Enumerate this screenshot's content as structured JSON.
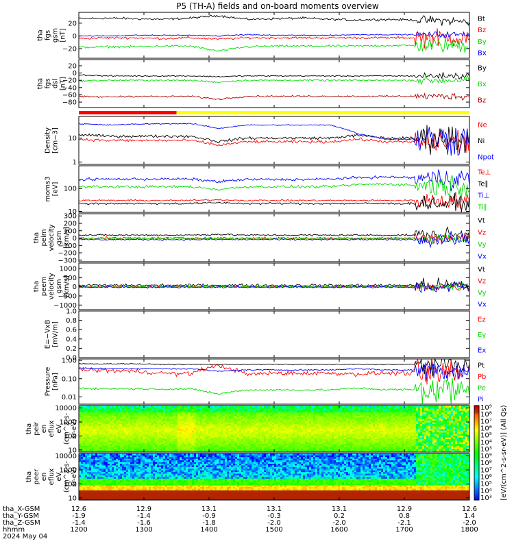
{
  "title": "P5 (TH-A) fields and on-board moments overview",
  "date_label": "2024 May 04",
  "colors": {
    "black": "#000000",
    "red": "#ff0000",
    "green": "#00dd00",
    "blue": "#0000ff",
    "darkred": "#aa0000",
    "yellow": "#ffff00"
  },
  "time_axis": {
    "hhmm_label": "hhmm",
    "ticks": [
      "1200",
      "1300",
      "1400",
      "1500",
      "1600",
      "1700",
      "1800"
    ],
    "ephemeris": [
      {
        "label": "tha_X-GSM",
        "values": [
          "12.6",
          "12.9",
          "13.1",
          "13.1",
          "13.1",
          "12.9",
          "12.6"
        ]
      },
      {
        "label": "tha_Y-GSM",
        "values": [
          "-1.9",
          "-1.4",
          "-0.9",
          "-0.3",
          "0.2",
          "0.8",
          "1.4"
        ]
      },
      {
        "label": "tha_Z-GSM",
        "values": [
          "-1.4",
          "-1.6",
          "-1.8",
          "-2.0",
          "-2.0",
          "-2.1",
          "-2.0"
        ]
      }
    ]
  },
  "colorbar": {
    "label": "[eV/(cm^2-s-sr-eV)] (All Qs)",
    "ticks": [
      "10⁹",
      "10⁸",
      "10⁷",
      "10⁶",
      "10⁵",
      "10⁴",
      "10³",
      "10⁹",
      "10⁸",
      "10⁷",
      "10⁶",
      "10⁵",
      "10⁴",
      "10³"
    ]
  },
  "chart_data": [
    {
      "type": "line",
      "ylabel": [
        "tha",
        "fgs",
        "gsm",
        "[nT]"
      ],
      "ylim": [
        -35,
        37
      ],
      "yticks": [
        {
          "v": 20,
          "t": "20"
        },
        {
          "v": 0,
          "t": "0"
        },
        {
          "v": -20,
          "t": "−20"
        }
      ],
      "series": [
        {
          "name": "Bt",
          "color": "#000000",
          "base": [
            27,
            28,
            27,
            26,
            28,
            32,
            26,
            27,
            28,
            26,
            25,
            26,
            25,
            24,
            22
          ],
          "noise": 1.5,
          "end_noise": 6
        },
        {
          "name": "Bz",
          "color": "#ff0000",
          "base": [
            -4,
            -3,
            -3,
            -4,
            -3,
            -5,
            -3,
            -3,
            -3,
            -3,
            -3,
            -3,
            -3,
            -3,
            -3
          ],
          "noise": 1.5,
          "end_noise": 12
        },
        {
          "name": "By",
          "color": "#00dd00",
          "base": [
            -18,
            -17,
            -17,
            -16,
            -16,
            -24,
            -17,
            -16,
            -16,
            -16,
            -16,
            -15,
            -15,
            -15,
            -15
          ],
          "noise": 1.5,
          "end_noise": 10
        },
        {
          "name": "Bx",
          "color": "#0000ff",
          "base": [
            0,
            0,
            1,
            1,
            1,
            0,
            2,
            1,
            1,
            1,
            2,
            2,
            2,
            2,
            2
          ],
          "noise": 0.7,
          "end_noise": 4
        }
      ]
    },
    {
      "type": "line",
      "ylabel": [
        "tha",
        "fgs",
        "dsl",
        "[nT]"
      ],
      "ylim": [
        -95,
        37
      ],
      "yticks": [
        {
          "v": 20,
          "t": "20"
        },
        {
          "v": 0,
          "t": "0"
        },
        {
          "v": -20,
          "t": "−20"
        },
        {
          "v": -40,
          "t": "−40"
        },
        {
          "v": -60,
          "t": "−60"
        },
        {
          "v": -80,
          "t": "−80"
        }
      ],
      "series": [
        {
          "name": "By",
          "color": "#000000",
          "base": [
            -5,
            -8,
            -8,
            -8,
            -8,
            -10,
            -8,
            -8,
            -8,
            -8,
            -8,
            -8,
            -8,
            -8,
            -8
          ],
          "noise": 1.5,
          "end_noise": 8
        },
        {
          "name": "Bx",
          "color": "#00dd00",
          "base": [
            -22,
            -20,
            -20,
            -20,
            -20,
            -25,
            -20,
            -20,
            -20,
            -20,
            -20,
            -20,
            -20,
            -20,
            -18
          ],
          "noise": 2,
          "end_noise": 10
        },
        {
          "name": "Bz",
          "color": "#aa0000",
          "base": [
            -65,
            -66,
            -64,
            -65,
            -64,
            -72,
            -64,
            -64,
            -64,
            -64,
            -64,
            -64,
            -64,
            -64,
            -64
          ],
          "noise": 2,
          "end_noise": 8
        }
      ]
    },
    {
      "type": "line",
      "scale": "log",
      "ylabel": [
        "Density",
        "[cm−3]"
      ],
      "ylim": [
        0.8,
        80
      ],
      "yticks": [
        {
          "v": 10,
          "t": "10"
        },
        {
          "v": 1,
          "t": "1"
        }
      ],
      "series": [
        {
          "name": "Ne",
          "color": "#ff0000",
          "base": [
            9,
            8,
            8,
            8,
            8,
            5,
            7,
            7,
            7,
            7,
            9,
            7,
            7,
            7,
            7
          ],
          "noise": 0.05,
          "end_noise": 0.5
        },
        {
          "name": "Ni",
          "color": "#000000",
          "base": [
            14,
            12,
            12,
            12,
            12,
            7,
            10,
            10,
            10,
            10,
            13,
            10,
            10,
            10,
            10
          ],
          "noise": 0.05,
          "end_noise": 0.5
        },
        {
          "name": "Npot",
          "color": "#0000ff",
          "base": [
            40,
            35,
            38,
            40,
            40,
            25,
            35,
            35,
            35,
            35,
            15,
            9,
            9,
            9,
            9
          ],
          "noise": 0.02,
          "end_noise": 0.6
        }
      ]
    },
    {
      "type": "line",
      "scale": "log",
      "ylabel": [
        "moms3",
        "[eV]"
      ],
      "ylim": [
        9,
        1000
      ],
      "yticks": [
        {
          "v": 100,
          "t": "100"
        },
        {
          "v": 10,
          "t": "10"
        }
      ],
      "series": [
        {
          "name": "Te⊥",
          "color": "#ff0000",
          "base": [
            30,
            30,
            30,
            30,
            30,
            32,
            30,
            30,
            30,
            30,
            30,
            30,
            30,
            30,
            30
          ],
          "noise": 0.03,
          "end_noise": 0.3
        },
        {
          "name": "Te∥",
          "color": "#000000",
          "base": [
            22,
            22,
            22,
            22,
            22,
            24,
            22,
            22,
            22,
            22,
            22,
            22,
            22,
            22,
            22
          ],
          "noise": 0.04,
          "end_noise": 0.3
        },
        {
          "name": "Ti⊥",
          "color": "#0000ff",
          "base": [
            250,
            260,
            260,
            260,
            260,
            200,
            250,
            250,
            250,
            260,
            300,
            320,
            300,
            280,
            280
          ],
          "noise": 0.05,
          "end_noise": 0.4
        },
        {
          "name": "Ti∥",
          "color": "#00dd00",
          "base": [
            120,
            120,
            120,
            120,
            120,
            90,
            120,
            120,
            120,
            120,
            150,
            160,
            140,
            130,
            130
          ],
          "noise": 0.05,
          "end_noise": 0.4
        }
      ]
    },
    {
      "type": "line",
      "ylabel": [
        "tha",
        "peim",
        "velocity",
        "gsm",
        "[km/s]"
      ],
      "ylim": [
        -320,
        330
      ],
      "yticks": [
        {
          "v": 300,
          "t": "300"
        },
        {
          "v": 200,
          "t": "200"
        },
        {
          "v": 100,
          "t": "100"
        },
        {
          "v": 0,
          "t": "0"
        },
        {
          "v": -100,
          "t": "−100"
        },
        {
          "v": -200,
          "t": "−200"
        },
        {
          "v": -300,
          "t": "−300"
        }
      ],
      "series": [
        {
          "name": "Vt",
          "color": "#000000",
          "base": [
            40,
            40,
            40,
            40,
            40,
            50,
            40,
            40,
            40,
            40,
            40,
            40,
            40,
            40,
            40
          ],
          "noise": 10,
          "end_noise": 80
        },
        {
          "name": "Vz",
          "color": "#ff0000",
          "base": [
            0,
            0,
            0,
            0,
            0,
            0,
            0,
            0,
            0,
            0,
            0,
            0,
            0,
            0,
            0
          ],
          "noise": 12,
          "end_noise": 60
        },
        {
          "name": "Vy",
          "color": "#00dd00",
          "base": [
            -5,
            -5,
            -5,
            -5,
            -5,
            -5,
            -5,
            -5,
            -5,
            -5,
            -5,
            -5,
            -5,
            -5,
            -5
          ],
          "noise": 10,
          "end_noise": 60
        },
        {
          "name": "Vx",
          "color": "#0000ff",
          "base": [
            -20,
            -20,
            -20,
            -20,
            -20,
            -20,
            -20,
            -20,
            -20,
            -20,
            -20,
            -20,
            -20,
            -20,
            -20
          ],
          "noise": 10,
          "end_noise": 80
        }
      ]
    },
    {
      "type": "line",
      "ylabel": [
        "tha",
        "peem",
        "velocity",
        "gsm",
        "[km/s]"
      ],
      "ylim": [
        -1250,
        1300
      ],
      "yticks": [
        {
          "v": 1000,
          "t": "1000"
        },
        {
          "v": 500,
          "t": "500"
        },
        {
          "v": 0,
          "t": "0"
        },
        {
          "v": -500,
          "t": "−500"
        },
        {
          "v": -1000,
          "t": "−1000"
        }
      ],
      "series": [
        {
          "name": "Vt",
          "color": "#000000",
          "base": [
            80,
            80,
            80,
            80,
            80,
            90,
            80,
            80,
            80,
            80,
            80,
            80,
            80,
            80,
            80
          ],
          "noise": 60,
          "end_noise": 300
        },
        {
          "name": "Vz",
          "color": "#ff0000",
          "base": [
            0,
            0,
            0,
            0,
            0,
            0,
            0,
            0,
            0,
            0,
            0,
            0,
            0,
            0,
            0
          ],
          "noise": 40,
          "end_noise": 200
        },
        {
          "name": "Vy",
          "color": "#00dd00",
          "base": [
            0,
            0,
            0,
            0,
            0,
            0,
            0,
            0,
            0,
            0,
            0,
            0,
            0,
            0,
            0
          ],
          "noise": 40,
          "end_noise": 200
        },
        {
          "name": "Vx",
          "color": "#0000ff",
          "base": [
            -20,
            -20,
            -20,
            -20,
            -20,
            -20,
            -20,
            -20,
            -20,
            -20,
            -20,
            -20,
            -20,
            -20,
            -20
          ],
          "noise": 40,
          "end_noise": 300
        }
      ]
    },
    {
      "type": "line",
      "ylabel": [
        "E=−VxB",
        "[mV/m]"
      ],
      "ylim": [
        0,
        1.0
      ],
      "yticks": [
        {
          "v": 1.0,
          "t": "1.0"
        },
        {
          "v": 0.8,
          "t": "0.8"
        },
        {
          "v": 0.6,
          "t": "0.6"
        },
        {
          "v": 0.4,
          "t": "0.4"
        },
        {
          "v": 0.2,
          "t": "0.2"
        },
        {
          "v": 0.0,
          "t": "0.0"
        }
      ],
      "series": [
        {
          "name": "Ez",
          "color": "#ff0000",
          "base": [],
          "noise": 0,
          "end_noise": 0
        },
        {
          "name": "Ey",
          "color": "#00dd00",
          "base": [],
          "noise": 0,
          "end_noise": 0
        },
        {
          "name": "Ex",
          "color": "#0000ff",
          "base": [],
          "noise": 0,
          "end_noise": 0
        }
      ]
    },
    {
      "type": "line",
      "scale": "log",
      "ylabel": [
        "Pressure",
        "[nPa]"
      ],
      "ylim": [
        0.004,
        1.2
      ],
      "yticks": [
        {
          "v": 1.0,
          "t": "1.00"
        },
        {
          "v": 0.1,
          "t": "0.10"
        },
        {
          "v": 0.01,
          "t": "0.01"
        }
      ],
      "series": [
        {
          "name": "Pt",
          "color": "#000000",
          "base": [
            0.65,
            0.65,
            0.65,
            0.6,
            0.6,
            0.6,
            0.6,
            0.6,
            0.6,
            0.6,
            0.6,
            0.6,
            0.6,
            0.6,
            0.6
          ],
          "noise": 0.02,
          "end_noise": 0.4
        },
        {
          "name": "Pb",
          "color": "#ff0000",
          "base": [
            0.3,
            0.28,
            0.25,
            0.2,
            0.18,
            0.5,
            0.17,
            0.2,
            0.2,
            0.2,
            0.18,
            0.2,
            0.2,
            0.2,
            0.2
          ],
          "noise": 0.1,
          "end_noise": 0.8
        },
        {
          "name": "Pe",
          "color": "#00dd00",
          "base": [
            0.03,
            0.028,
            0.028,
            0.027,
            0.027,
            0.014,
            0.024,
            0.024,
            0.024,
            0.024,
            0.03,
            0.025,
            0.025,
            0.025,
            0.025
          ],
          "noise": 0.05,
          "end_noise": 0.7
        },
        {
          "name": "Pi",
          "color": "#0000ff",
          "base": [
            0.4,
            0.35,
            0.35,
            0.35,
            0.35,
            0.25,
            0.3,
            0.3,
            0.3,
            0.3,
            0.35,
            0.3,
            0.3,
            0.3,
            0.3
          ],
          "noise": 0.03,
          "end_noise": 0.5
        }
      ]
    },
    {
      "type": "heatmap",
      "ylabel": [
        "tha",
        "peir",
        "en",
        "eflux",
        "eV",
        "(cm^2-s-",
        "sr-eV)"
      ],
      "ylim": [
        7,
        15000
      ],
      "yticks": [
        {
          "v": 10000,
          "t": "10000"
        },
        {
          "v": 1000,
          "t": "1000"
        },
        {
          "v": 100,
          "t": "100"
        },
        {
          "v": 10,
          "t": "10"
        }
      ],
      "kind": "ion"
    },
    {
      "type": "heatmap",
      "ylabel": [
        "tha",
        "peer",
        "en",
        "eflux",
        "eV",
        "(cm^2-s-",
        "sr-eV)"
      ],
      "ylim": [
        7,
        15000
      ],
      "yticks": [
        {
          "v": 10000,
          "t": "10000"
        },
        {
          "v": 1000,
          "t": "1000"
        },
        {
          "v": 100,
          "t": "100"
        },
        {
          "v": 10,
          "t": "10"
        }
      ],
      "kind": "electron"
    }
  ]
}
